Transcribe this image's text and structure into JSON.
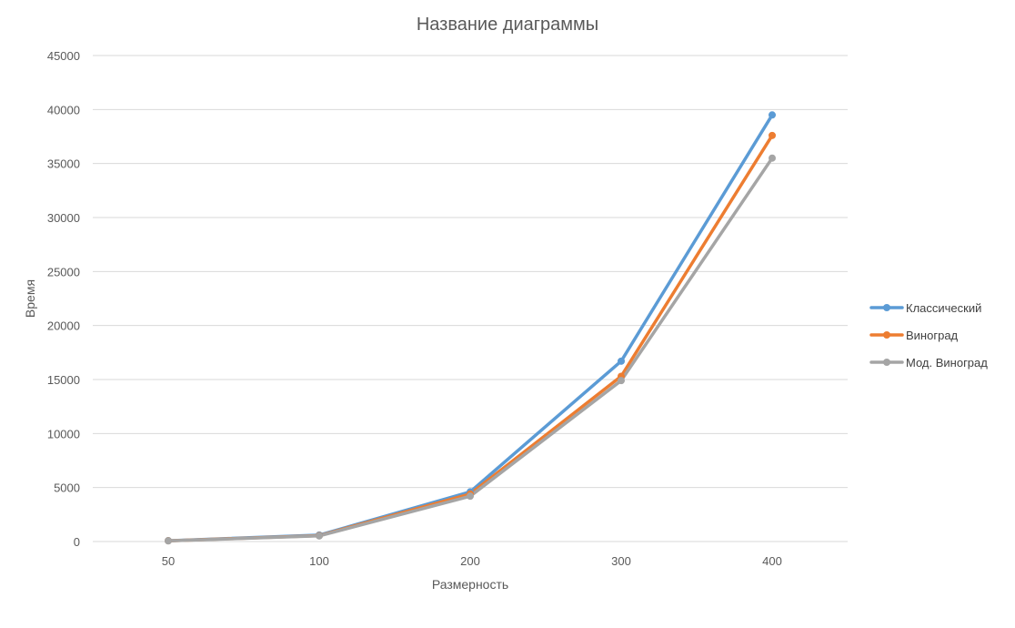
{
  "chart_data": {
    "type": "line",
    "title": "Название диаграммы",
    "xlabel": "Размерность",
    "ylabel": "Время",
    "categories": [
      "50",
      "100",
      "200",
      "300",
      "400"
    ],
    "ylim": [
      0,
      45000
    ],
    "yticks": [
      0,
      5000,
      10000,
      15000,
      20000,
      25000,
      30000,
      35000,
      40000,
      45000
    ],
    "grid": true,
    "legend_position": "right",
    "series": [
      {
        "name": "Классический",
        "color": "#5B9BD5",
        "values": [
          80,
          600,
          4600,
          16700,
          39500
        ]
      },
      {
        "name": "Виноград",
        "color": "#ED7D31",
        "values": [
          70,
          550,
          4400,
          15300,
          37600
        ]
      },
      {
        "name": "Мод. Виноград",
        "color": "#A5A5A5",
        "values": [
          60,
          520,
          4200,
          14900,
          35500
        ]
      }
    ]
  }
}
